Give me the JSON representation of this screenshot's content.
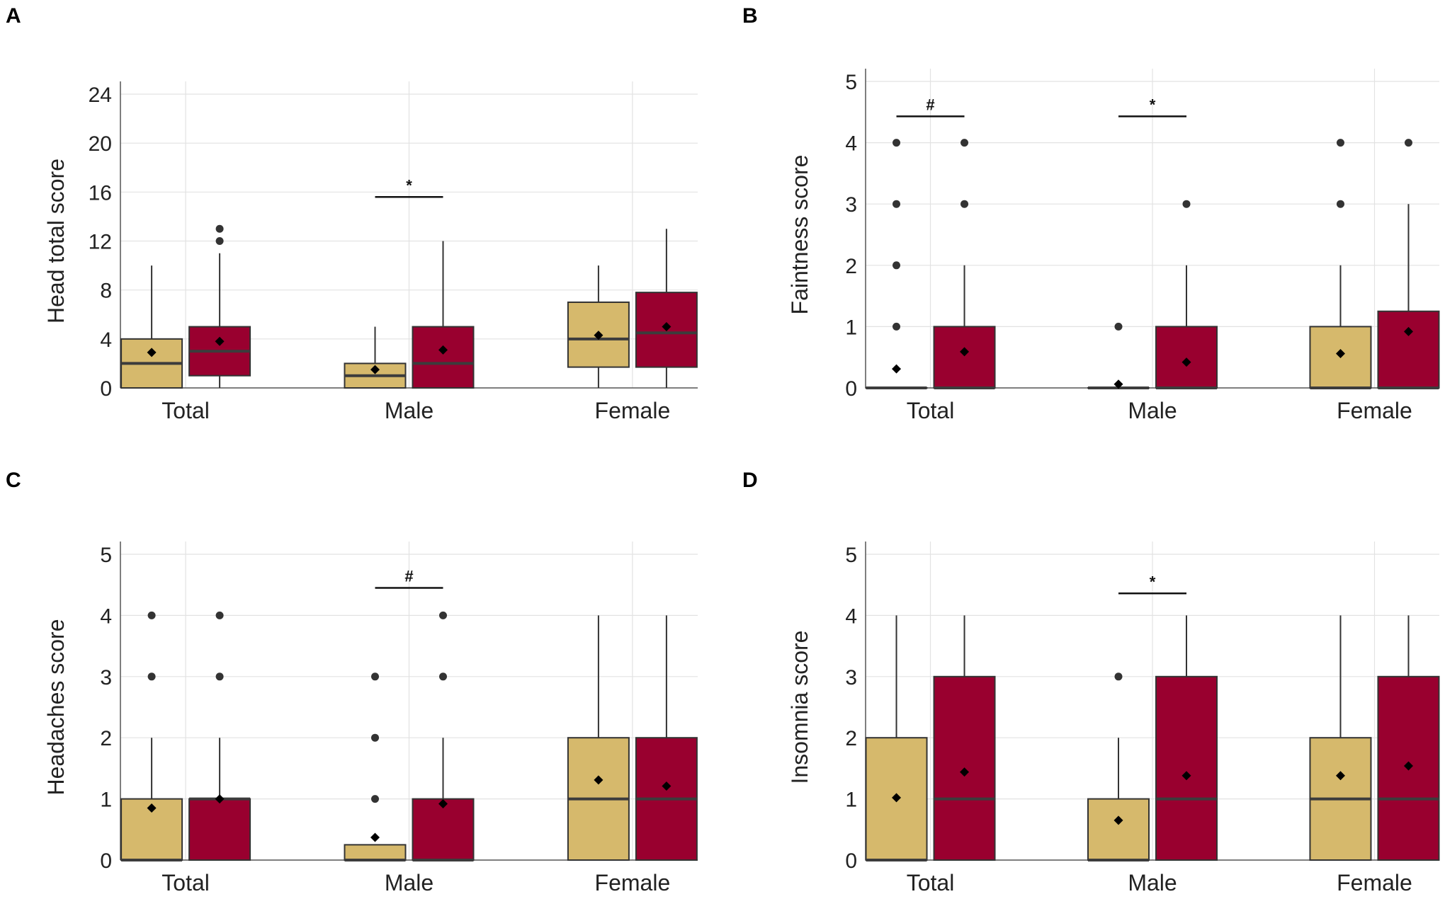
{
  "colors": {
    "group1": "#d6b96c",
    "group2": "#99002f",
    "box_stroke": "#333333",
    "median": "#3c3c3c",
    "grid": "#e2e2e2",
    "axis": "#555555",
    "point": "#333333",
    "mean": "#000000"
  },
  "chart_data": [
    {
      "panel": "A",
      "type": "box",
      "ylabel": "Head total score",
      "ylim": [
        0,
        24
      ],
      "yticks": [
        0,
        4,
        8,
        12,
        16,
        20,
        24
      ],
      "categories": [
        "Total",
        "Male",
        "Female"
      ],
      "boxes": [
        {
          "category": "Total",
          "group": 1,
          "q1": 0,
          "median": 2,
          "q3": 4,
          "low": 0,
          "high": 10,
          "mean": 2.9,
          "outliers": []
        },
        {
          "category": "Total",
          "group": 2,
          "q1": 1,
          "median": 3,
          "q3": 5,
          "low": 0,
          "high": 11,
          "mean": 3.8,
          "outliers": [
            12,
            13
          ]
        },
        {
          "category": "Male",
          "group": 1,
          "q1": 0,
          "median": 1,
          "q3": 2,
          "low": 0,
          "high": 5,
          "mean": 1.5,
          "outliers": []
        },
        {
          "category": "Male",
          "group": 2,
          "q1": 0,
          "median": 2,
          "q3": 5,
          "low": 0,
          "high": 12,
          "mean": 3.1,
          "outliers": []
        },
        {
          "category": "Female",
          "group": 1,
          "q1": 1.7,
          "median": 4,
          "q3": 7,
          "low": 0,
          "high": 10,
          "mean": 4.3,
          "outliers": []
        },
        {
          "category": "Female",
          "group": 2,
          "q1": 1.7,
          "median": 4.5,
          "q3": 7.8,
          "low": 0,
          "high": 13,
          "mean": 5.0,
          "outliers": []
        }
      ],
      "annotations": [
        {
          "category": "Male",
          "y": 15.6,
          "text": "*"
        }
      ]
    },
    {
      "panel": "B",
      "type": "box",
      "ylabel": "Faintness score",
      "ylim": [
        0,
        5
      ],
      "yticks": [
        0,
        1,
        2,
        3,
        4,
        5
      ],
      "categories": [
        "Total",
        "Male",
        "Female"
      ],
      "boxes": [
        {
          "category": "Total",
          "group": 1,
          "q1": 0,
          "median": 0,
          "q3": 0,
          "low": 0,
          "high": 0,
          "mean": 0.31,
          "outliers": [
            1,
            2,
            3,
            4
          ]
        },
        {
          "category": "Total",
          "group": 2,
          "q1": 0,
          "median": 0,
          "q3": 1,
          "low": 0,
          "high": 2,
          "mean": 0.59,
          "outliers": [
            3,
            4
          ]
        },
        {
          "category": "Male",
          "group": 1,
          "q1": 0,
          "median": 0,
          "q3": 0,
          "low": 0,
          "high": 0,
          "mean": 0.06,
          "outliers": [
            1
          ]
        },
        {
          "category": "Male",
          "group": 2,
          "q1": 0,
          "median": 0,
          "q3": 1,
          "low": 0,
          "high": 2,
          "mean": 0.42,
          "outliers": [
            3
          ]
        },
        {
          "category": "Female",
          "group": 1,
          "q1": 0,
          "median": 0,
          "q3": 1,
          "low": 0,
          "high": 2,
          "mean": 0.56,
          "outliers": [
            3,
            4
          ]
        },
        {
          "category": "Female",
          "group": 2,
          "q1": 0,
          "median": 0,
          "q3": 1.25,
          "low": 0,
          "high": 3,
          "mean": 0.92,
          "outliers": [
            4
          ]
        }
      ],
      "annotations": [
        {
          "category": "Total",
          "y": 4.43,
          "text": "#"
        },
        {
          "category": "Male",
          "y": 4.43,
          "text": "*"
        }
      ]
    },
    {
      "panel": "C",
      "type": "box",
      "ylabel": "Headaches score",
      "ylim": [
        0,
        5
      ],
      "yticks": [
        0,
        1,
        2,
        3,
        4,
        5
      ],
      "categories": [
        "Total",
        "Male",
        "Female"
      ],
      "boxes": [
        {
          "category": "Total",
          "group": 1,
          "q1": 0,
          "median": 0,
          "q3": 1,
          "low": 0,
          "high": 2,
          "mean": 0.85,
          "outliers": [
            3,
            4
          ]
        },
        {
          "category": "Total",
          "group": 2,
          "q1": 0,
          "median": 1,
          "q3": 1,
          "low": 0,
          "high": 2,
          "mean": 1.0,
          "outliers": [
            3,
            4
          ]
        },
        {
          "category": "Male",
          "group": 1,
          "q1": 0,
          "median": 0,
          "q3": 0.25,
          "low": 0,
          "high": 0.25,
          "mean": 0.37,
          "outliers": [
            1,
            2,
            3
          ]
        },
        {
          "category": "Male",
          "group": 2,
          "q1": 0,
          "median": 0,
          "q3": 1,
          "low": 0,
          "high": 2,
          "mean": 0.92,
          "outliers": [
            3,
            4
          ]
        },
        {
          "category": "Female",
          "group": 1,
          "q1": 0,
          "median": 1,
          "q3": 2,
          "low": 0,
          "high": 4,
          "mean": 1.31,
          "outliers": []
        },
        {
          "category": "Female",
          "group": 2,
          "q1": 0,
          "median": 1,
          "q3": 2,
          "low": 0,
          "high": 4,
          "mean": 1.21,
          "outliers": []
        }
      ],
      "annotations": [
        {
          "category": "Male",
          "y": 4.45,
          "text": "#"
        }
      ]
    },
    {
      "panel": "D",
      "type": "box",
      "ylabel": "Insomnia score",
      "ylim": [
        0,
        5
      ],
      "yticks": [
        0,
        1,
        2,
        3,
        4,
        5
      ],
      "categories": [
        "Total",
        "Male",
        "Female"
      ],
      "boxes": [
        {
          "category": "Total",
          "group": 1,
          "q1": 0,
          "median": 0,
          "q3": 2,
          "low": 0,
          "high": 4,
          "mean": 1.02,
          "outliers": []
        },
        {
          "category": "Total",
          "group": 2,
          "q1": 0,
          "median": 1,
          "q3": 3,
          "low": 0,
          "high": 4,
          "mean": 1.44,
          "outliers": []
        },
        {
          "category": "Male",
          "group": 1,
          "q1": 0,
          "median": 0,
          "q3": 1,
          "low": 0,
          "high": 2,
          "mean": 0.65,
          "outliers": [
            3
          ]
        },
        {
          "category": "Male",
          "group": 2,
          "q1": 0,
          "median": 1,
          "q3": 3,
          "low": 0,
          "high": 4,
          "mean": 1.38,
          "outliers": []
        },
        {
          "category": "Female",
          "group": 1,
          "q1": 0,
          "median": 1,
          "q3": 2,
          "low": 0,
          "high": 4,
          "mean": 1.38,
          "outliers": []
        },
        {
          "category": "Female",
          "group": 2,
          "q1": 0,
          "median": 1,
          "q3": 3,
          "low": 0,
          "high": 4,
          "mean": 1.54,
          "outliers": []
        }
      ],
      "annotations": [
        {
          "category": "Male",
          "y": 4.36,
          "text": "*"
        }
      ]
    }
  ]
}
